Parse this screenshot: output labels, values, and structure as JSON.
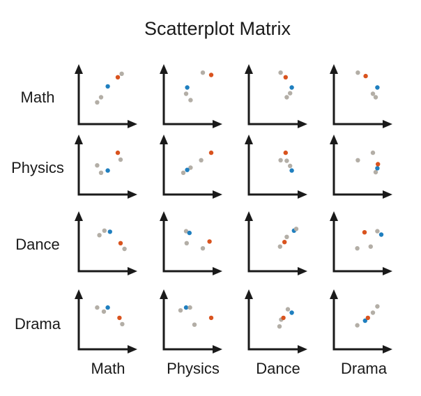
{
  "title": "Scatterplot Matrix",
  "variables": [
    "Math",
    "Physics",
    "Dance",
    "Drama"
  ],
  "colors": {
    "axis": "#1a1a1a",
    "gray": "#b3aea6",
    "blue": "#1f7fbf",
    "orange": "#d9531e"
  },
  "chart_data": {
    "type": "scatter",
    "title": "Scatterplot Matrix",
    "row_labels": [
      "Math",
      "Physics",
      "Dance",
      "Drama"
    ],
    "col_labels": [
      "Math",
      "Physics",
      "Dance",
      "Drama"
    ],
    "point_colors": [
      "gray",
      "gray",
      "blue",
      "orange",
      "gray"
    ],
    "panels": [
      [
        [
          [
            0.33,
            0.38
          ],
          [
            0.4,
            0.47
          ],
          [
            0.52,
            0.66
          ],
          [
            0.7,
            0.82
          ],
          [
            0.77,
            0.88
          ]
        ],
        [
          [
            0.4,
            0.53
          ],
          [
            0.48,
            0.42
          ],
          [
            0.42,
            0.64
          ],
          [
            0.85,
            0.86
          ],
          [
            0.7,
            0.9
          ]
        ],
        [
          [
            0.68,
            0.47
          ],
          [
            0.74,
            0.54
          ],
          [
            0.77,
            0.64
          ],
          [
            0.66,
            0.82
          ],
          [
            0.57,
            0.9
          ]
        ],
        [
          [
            0.75,
            0.47
          ],
          [
            0.7,
            0.53
          ],
          [
            0.78,
            0.64
          ],
          [
            0.57,
            0.84
          ],
          [
            0.43,
            0.9
          ]
        ]
      ],
      [
        [
          [
            0.33,
            0.51
          ],
          [
            0.4,
            0.38
          ],
          [
            0.52,
            0.42
          ],
          [
            0.7,
            0.73
          ],
          [
            0.75,
            0.61
          ]
        ],
        [
          [
            0.35,
            0.38
          ],
          [
            0.48,
            0.47
          ],
          [
            0.42,
            0.43
          ],
          [
            0.85,
            0.73
          ],
          [
            0.67,
            0.6
          ]
        ],
        [
          [
            0.68,
            0.59
          ],
          [
            0.74,
            0.5
          ],
          [
            0.77,
            0.42
          ],
          [
            0.66,
            0.73
          ],
          [
            0.57,
            0.6
          ]
        ],
        [
          [
            0.75,
            0.39
          ],
          [
            0.7,
            0.73
          ],
          [
            0.78,
            0.46
          ],
          [
            0.79,
            0.53
          ],
          [
            0.43,
            0.6
          ]
        ]
      ],
      [
        [
          [
            0.37,
            0.63
          ],
          [
            0.46,
            0.71
          ],
          [
            0.56,
            0.69
          ],
          [
            0.75,
            0.49
          ],
          [
            0.82,
            0.39
          ]
        ],
        [
          [
            0.41,
            0.49
          ],
          [
            0.4,
            0.7
          ],
          [
            0.46,
            0.67
          ],
          [
            0.82,
            0.52
          ],
          [
            0.7,
            0.4
          ]
        ],
        [
          [
            0.56,
            0.43
          ],
          [
            0.68,
            0.6
          ],
          [
            0.81,
            0.71
          ],
          [
            0.64,
            0.51
          ],
          [
            0.85,
            0.74
          ]
        ],
        [
          [
            0.78,
            0.7
          ],
          [
            0.66,
            0.43
          ],
          [
            0.85,
            0.64
          ],
          [
            0.55,
            0.68
          ],
          [
            0.42,
            0.4
          ]
        ]
      ],
      [
        [
          [
            0.33,
            0.73
          ],
          [
            0.45,
            0.66
          ],
          [
            0.52,
            0.73
          ],
          [
            0.73,
            0.55
          ],
          [
            0.78,
            0.44
          ]
        ],
        [
          [
            0.3,
            0.68
          ],
          [
            0.55,
            0.43
          ],
          [
            0.4,
            0.73
          ],
          [
            0.85,
            0.55
          ],
          [
            0.47,
            0.73
          ]
        ],
        [
          [
            0.58,
            0.52
          ],
          [
            0.7,
            0.7
          ],
          [
            0.77,
            0.64
          ],
          [
            0.62,
            0.55
          ],
          [
            0.55,
            0.4
          ]
        ],
        [
          [
            0.7,
            0.64
          ],
          [
            0.78,
            0.75
          ],
          [
            0.56,
            0.5
          ],
          [
            0.61,
            0.55
          ],
          [
            0.42,
            0.42
          ]
        ]
      ]
    ]
  }
}
